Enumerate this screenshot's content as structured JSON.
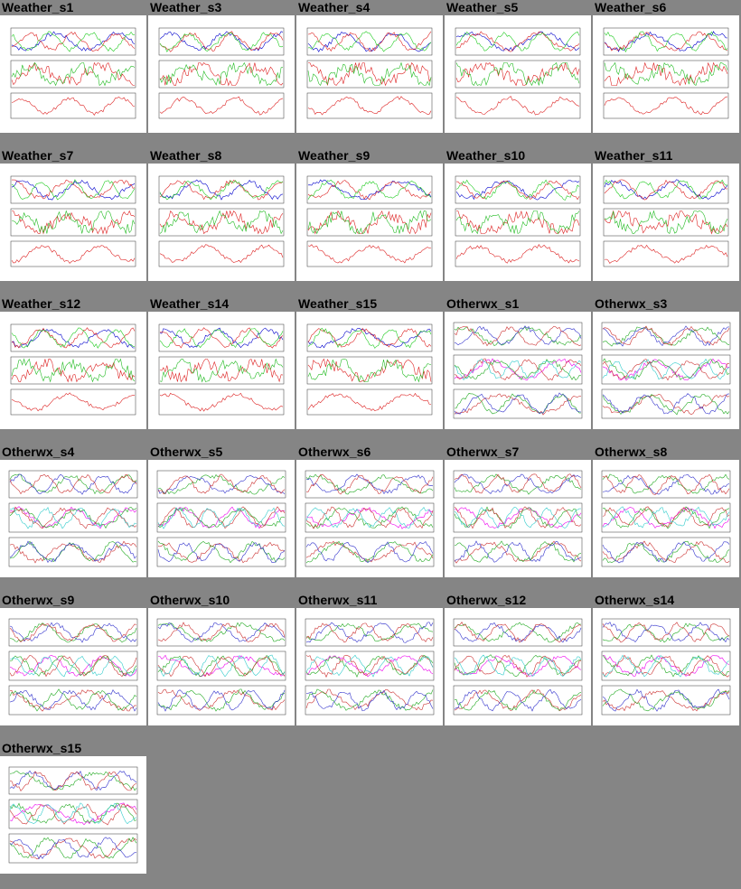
{
  "page": {
    "background": "#858585"
  },
  "thumbnails": [
    {
      "title": "Weather_s1",
      "kind": "weather"
    },
    {
      "title": "Weather_s3",
      "kind": "weather"
    },
    {
      "title": "Weather_s4",
      "kind": "weather"
    },
    {
      "title": "Weather_s5",
      "kind": "weather"
    },
    {
      "title": "Weather_s6",
      "kind": "weather"
    },
    {
      "title": "Weather_s7",
      "kind": "weather"
    },
    {
      "title": "Weather_s8",
      "kind": "weather"
    },
    {
      "title": "Weather_s9",
      "kind": "weather"
    },
    {
      "title": "Weather_s10",
      "kind": "weather"
    },
    {
      "title": "Weather_s11",
      "kind": "weather"
    },
    {
      "title": "Weather_s12",
      "kind": "weather"
    },
    {
      "title": "Weather_s14",
      "kind": "weather"
    },
    {
      "title": "Weather_s15",
      "kind": "weather"
    },
    {
      "title": "Otherwx_s1",
      "kind": "otherwx"
    },
    {
      "title": "Otherwx_s3",
      "kind": "otherwx"
    },
    {
      "title": "Otherwx_s4",
      "kind": "otherwx"
    },
    {
      "title": "Otherwx_s5",
      "kind": "otherwx"
    },
    {
      "title": "Otherwx_s6",
      "kind": "otherwx"
    },
    {
      "title": "Otherwx_s7",
      "kind": "otherwx"
    },
    {
      "title": "Otherwx_s8",
      "kind": "otherwx"
    },
    {
      "title": "Otherwx_s9",
      "kind": "otherwx"
    },
    {
      "title": "Otherwx_s10",
      "kind": "otherwx"
    },
    {
      "title": "Otherwx_s11",
      "kind": "otherwx"
    },
    {
      "title": "Otherwx_s12",
      "kind": "otherwx"
    },
    {
      "title": "Otherwx_s14",
      "kind": "otherwx"
    },
    {
      "title": "Otherwx_s15",
      "kind": "otherwx"
    }
  ]
}
